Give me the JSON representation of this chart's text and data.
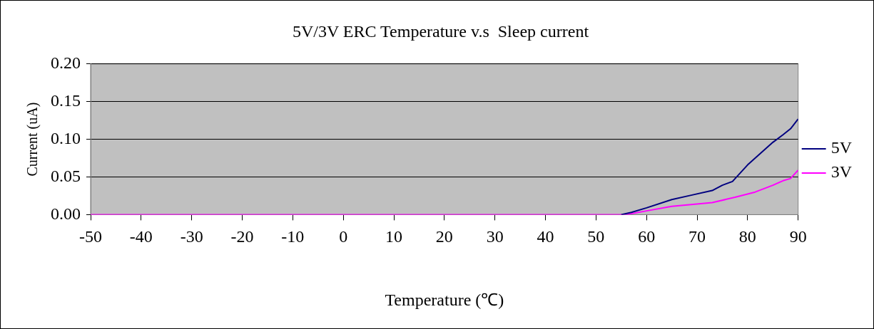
{
  "chart_data": {
    "type": "line",
    "title": "5V/3V ERC Temperature v.s  Sleep current",
    "xlabel": "Temperature (℃)",
    "ylabel": "Current (uA)",
    "series": [
      {
        "name": "5V",
        "color": "#000080",
        "x": [
          55,
          57,
          60,
          65,
          69,
          73,
          75,
          77,
          80,
          85,
          87,
          88.5,
          90
        ],
        "values": [
          0,
          0.003,
          0.009,
          0.02,
          0.026,
          0.032,
          0.039,
          0.044,
          0.066,
          0.096,
          0.106,
          0.114,
          0.127
        ]
      },
      {
        "name": "3V",
        "color": "#ff00ff",
        "x": [
          -50,
          56,
          60,
          65,
          73,
          77.5,
          81.5,
          85,
          87,
          88.5,
          90
        ],
        "values": [
          0,
          0,
          0.005,
          0.011,
          0.016,
          0.023,
          0.03,
          0.039,
          0.045,
          0.048,
          0.059
        ]
      }
    ],
    "xlim": [
      -50,
      90
    ],
    "xticks": [
      -50,
      -40,
      -30,
      -20,
      -10,
      0,
      10,
      20,
      30,
      40,
      50,
      60,
      70,
      80,
      90
    ],
    "ylim": [
      0,
      0.2
    ],
    "yticks": [
      {
        "value": 0,
        "label": "0.00"
      },
      {
        "value": 0.05,
        "label": "0.05"
      },
      {
        "value": 0.1,
        "label": "0.10"
      },
      {
        "value": 0.15,
        "label": "0.15"
      },
      {
        "value": 0.2,
        "label": "0.20"
      }
    ],
    "grid": "y",
    "legend": "right",
    "marker": "none",
    "line_style": "solid"
  }
}
